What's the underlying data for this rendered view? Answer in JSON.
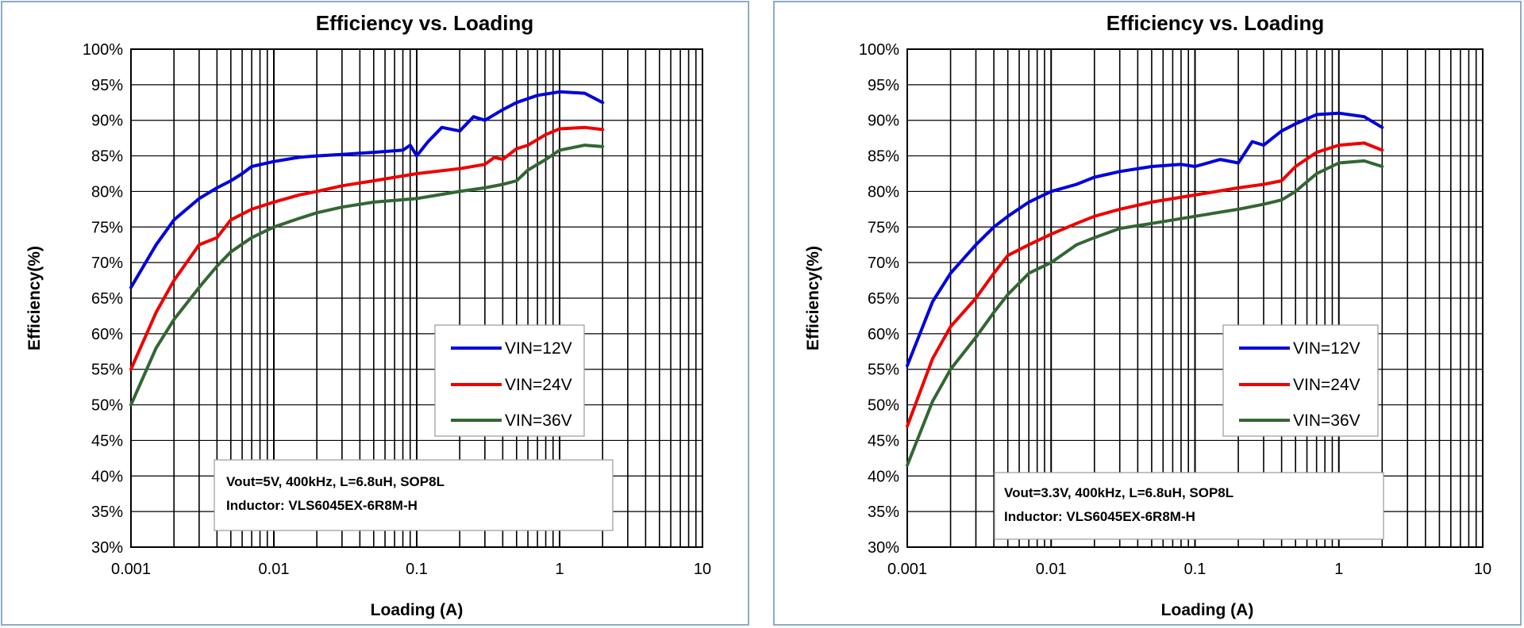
{
  "chart_data": [
    {
      "type": "line",
      "title": "Efficiency vs. Loading",
      "xlabel": "Loading (A)",
      "ylabel": "Efficiency(%)",
      "x_scale": "log",
      "xlim": [
        0.001,
        10
      ],
      "ylim": [
        30,
        100
      ],
      "x_ticks": [
        "0.001",
        "0.01",
        "0.1",
        "1",
        "10"
      ],
      "y_ticks": [
        "30%",
        "35%",
        "40%",
        "45%",
        "50%",
        "55%",
        "60%",
        "65%",
        "70%",
        "75%",
        "80%",
        "85%",
        "90%",
        "95%",
        "100%"
      ],
      "grid": true,
      "legend_position": "center-right",
      "annotation": [
        "Vout=5V, 400kHz, L=6.8uH, SOP8L",
        "Inductor: VLS6045EX-6R8M-H"
      ],
      "series": [
        {
          "name": "VIN=12V",
          "color": "#0000dd",
          "x": [
            0.001,
            0.0015,
            0.002,
            0.003,
            0.004,
            0.005,
            0.006,
            0.007,
            0.01,
            0.015,
            0.02,
            0.03,
            0.05,
            0.08,
            0.09,
            0.1,
            0.12,
            0.15,
            0.2,
            0.25,
            0.3,
            0.4,
            0.5,
            0.7,
            1.0,
            1.5,
            2.0
          ],
          "y": [
            66.5,
            72.5,
            76.0,
            79.0,
            80.5,
            81.5,
            82.5,
            83.5,
            84.2,
            84.8,
            85.0,
            85.2,
            85.5,
            85.8,
            86.5,
            85.0,
            87.0,
            89.0,
            88.5,
            90.5,
            90.0,
            91.5,
            92.5,
            93.5,
            94.0,
            93.8,
            92.5
          ]
        },
        {
          "name": "VIN=24V",
          "color": "#ee0000",
          "x": [
            0.001,
            0.0015,
            0.002,
            0.003,
            0.004,
            0.005,
            0.007,
            0.01,
            0.015,
            0.02,
            0.03,
            0.05,
            0.1,
            0.2,
            0.3,
            0.35,
            0.4,
            0.5,
            0.6,
            0.8,
            1.0,
            1.5,
            2.0
          ],
          "y": [
            55.0,
            63.0,
            67.5,
            72.5,
            73.5,
            76.0,
            77.5,
            78.5,
            79.5,
            80.0,
            80.8,
            81.5,
            82.5,
            83.2,
            83.8,
            84.8,
            84.5,
            86.0,
            86.5,
            88.0,
            88.8,
            89.0,
            88.7
          ]
        },
        {
          "name": "VIN=36V",
          "color": "#336633",
          "x": [
            0.001,
            0.0015,
            0.002,
            0.003,
            0.004,
            0.005,
            0.007,
            0.01,
            0.015,
            0.02,
            0.03,
            0.05,
            0.1,
            0.2,
            0.3,
            0.4,
            0.5,
            0.6,
            0.8,
            1.0,
            1.5,
            2.0
          ],
          "y": [
            50.0,
            58.0,
            62.0,
            66.5,
            69.5,
            71.5,
            73.5,
            75.0,
            76.2,
            77.0,
            77.8,
            78.5,
            79.0,
            80.0,
            80.5,
            81.0,
            81.5,
            83.0,
            84.5,
            85.8,
            86.5,
            86.3
          ]
        }
      ]
    },
    {
      "type": "line",
      "title": "Efficiency vs. Loading",
      "xlabel": "Loading (A)",
      "ylabel": "Efficiency(%)",
      "x_scale": "log",
      "xlim": [
        0.001,
        10
      ],
      "ylim": [
        30,
        100
      ],
      "x_ticks": [
        "0.001",
        "0.01",
        "0.1",
        "1",
        "10"
      ],
      "y_ticks": [
        "30%",
        "35%",
        "40%",
        "45%",
        "50%",
        "55%",
        "60%",
        "65%",
        "70%",
        "75%",
        "80%",
        "85%",
        "90%",
        "95%",
        "100%"
      ],
      "grid": true,
      "legend_position": "center-right",
      "annotation": [
        "Vout=3.3V, 400kHz, L=6.8uH, SOP8L",
        "Inductor: VLS6045EX-6R8M-H"
      ],
      "series": [
        {
          "name": "VIN=12V",
          "color": "#0000dd",
          "x": [
            0.001,
            0.0015,
            0.002,
            0.003,
            0.004,
            0.005,
            0.007,
            0.01,
            0.015,
            0.02,
            0.03,
            0.05,
            0.08,
            0.1,
            0.15,
            0.2,
            0.25,
            0.3,
            0.4,
            0.5,
            0.7,
            1.0,
            1.5,
            2.0
          ],
          "y": [
            55.5,
            64.5,
            68.5,
            72.5,
            75.0,
            76.5,
            78.5,
            80.0,
            81.0,
            82.0,
            82.8,
            83.5,
            83.8,
            83.5,
            84.5,
            84.0,
            87.0,
            86.5,
            88.5,
            89.5,
            90.8,
            91.0,
            90.5,
            89.0
          ]
        },
        {
          "name": "VIN=24V",
          "color": "#ee0000",
          "x": [
            0.001,
            0.0015,
            0.002,
            0.003,
            0.004,
            0.005,
            0.007,
            0.01,
            0.015,
            0.02,
            0.03,
            0.05,
            0.1,
            0.2,
            0.3,
            0.4,
            0.5,
            0.7,
            1.0,
            1.5,
            2.0
          ],
          "y": [
            47.0,
            56.5,
            61.0,
            65.0,
            68.5,
            71.0,
            72.5,
            74.0,
            75.5,
            76.5,
            77.5,
            78.5,
            79.5,
            80.5,
            81.0,
            81.5,
            83.5,
            85.5,
            86.5,
            86.8,
            85.8
          ]
        },
        {
          "name": "VIN=36V",
          "color": "#336633",
          "x": [
            0.001,
            0.0015,
            0.002,
            0.003,
            0.004,
            0.005,
            0.007,
            0.01,
            0.015,
            0.02,
            0.03,
            0.05,
            0.1,
            0.2,
            0.3,
            0.4,
            0.5,
            0.7,
            1.0,
            1.5,
            2.0
          ],
          "y": [
            41.5,
            50.5,
            55.0,
            59.5,
            63.0,
            65.5,
            68.5,
            70.0,
            72.5,
            73.5,
            74.8,
            75.5,
            76.5,
            77.5,
            78.2,
            78.8,
            80.0,
            82.5,
            84.0,
            84.3,
            83.5
          ]
        }
      ]
    }
  ]
}
